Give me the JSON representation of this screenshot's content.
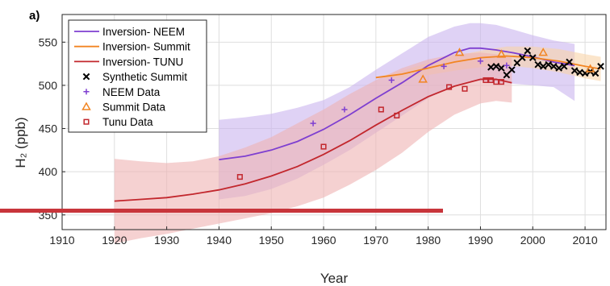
{
  "chart_data": {
    "type": "line",
    "panel_label": "a)",
    "xlabel": "Year",
    "ylabel": "H₂ (ppb)",
    "xlim": [
      1910,
      2014
    ],
    "ylim": [
      333,
      582
    ],
    "x_ticks": [
      "1910",
      "1920",
      "1930",
      "1940",
      "1950",
      "1960",
      "1970",
      "1980",
      "1990",
      "2000",
      "2010"
    ],
    "y_ticks": [
      "350",
      "400",
      "450",
      "500",
      "550"
    ],
    "grid": true,
    "legend_position": "top-left",
    "colors": {
      "neem": "#7e3fd0",
      "neem_band": "#c9b4ee",
      "summit": "#f28522",
      "summit_band": "#f8d3a8",
      "tunu": "#c2272d",
      "tunu_band": "#efb2b2",
      "synthetic": "#000000",
      "overlay_bar": "#c8353b"
    },
    "legend": [
      {
        "label": "Inversion- NEEM",
        "symbol": "line",
        "color": "#7e3fd0"
      },
      {
        "label": "Inversion- Summit",
        "symbol": "line",
        "color": "#f28522"
      },
      {
        "label": "Inversion- TUNU",
        "symbol": "line",
        "color": "#c2272d"
      },
      {
        "label": "Synthetic Summit",
        "symbol": "x",
        "color": "#000000"
      },
      {
        "label": "NEEM Data",
        "symbol": "plus",
        "color": "#7e3fd0"
      },
      {
        "label": "Summit Data",
        "symbol": "triangle",
        "color": "#f28522"
      },
      {
        "label": "Tunu Data",
        "symbol": "square",
        "color": "#c2272d"
      }
    ],
    "series": [
      {
        "name": "Inversion- NEEM",
        "kind": "line",
        "color": "#7e3fd0",
        "band_color": "#c9b4ee",
        "x": [
          1940,
          1945,
          1950,
          1955,
          1960,
          1965,
          1970,
          1975,
          1980,
          1985,
          1988,
          1990,
          1993,
          1996,
          2000,
          2004,
          2008
        ],
        "y": [
          414,
          418,
          425,
          435,
          449,
          466,
          485,
          503,
          523,
          538,
          543,
          543,
          541,
          538,
          533,
          527,
          523
        ],
        "upper": [
          460,
          463,
          467,
          474,
          483,
          498,
          518,
          537,
          556,
          568,
          572,
          572,
          570,
          565,
          558,
          552,
          548
        ],
        "lower": [
          368,
          372,
          380,
          392,
          408,
          425,
          445,
          465,
          485,
          500,
          505,
          505,
          503,
          502,
          500,
          498,
          482
        ]
      },
      {
        "name": "Inversion- Summit",
        "kind": "line",
        "color": "#f28522",
        "band_color": "#f8d3a8",
        "x": [
          1970,
          1975,
          1980,
          1985,
          1990,
          1995,
          2000,
          2005,
          2010,
          2013
        ],
        "y": [
          509,
          513,
          520,
          527,
          532,
          534,
          532,
          528,
          522,
          519
        ],
        "upper": [
          509,
          517,
          526,
          534,
          540,
          545,
          545,
          542,
          536,
          533
        ],
        "lower": [
          509,
          509,
          512,
          517,
          521,
          523,
          520,
          515,
          508,
          505
        ]
      },
      {
        "name": "Inversion- TUNU",
        "kind": "line",
        "color": "#c2272d",
        "band_color": "#efb2b2",
        "x": [
          1920,
          1925,
          1930,
          1935,
          1940,
          1945,
          1950,
          1955,
          1960,
          1965,
          1970,
          1975,
          1980,
          1985,
          1990,
          1993,
          1996
        ],
        "y": [
          366,
          368,
          370,
          374,
          379,
          386,
          395,
          406,
          420,
          436,
          454,
          471,
          487,
          499,
          507,
          507,
          503
        ],
        "upper": [
          415,
          412,
          410,
          412,
          418,
          428,
          440,
          456,
          472,
          490,
          506,
          520,
          530,
          536,
          538,
          536,
          532
        ],
        "lower": [
          317,
          323,
          328,
          334,
          340,
          346,
          352,
          360,
          370,
          385,
          402,
          422,
          446,
          466,
          479,
          482,
          480
        ]
      },
      {
        "name": "Synthetic Summit",
        "kind": "marker",
        "marker": "x",
        "color": "#000000",
        "x": [
          1992,
          1993,
          1994,
          1995,
          1996,
          1997,
          1998,
          1999,
          2000,
          2001,
          2002,
          2003,
          2004,
          2005,
          2006,
          2007,
          2008,
          2009,
          2010,
          2011,
          2012,
          2013
        ],
        "y": [
          521,
          522,
          520,
          512,
          518,
          526,
          532,
          540,
          532,
          524,
          522,
          524,
          522,
          520,
          522,
          527,
          517,
          515,
          514,
          516,
          514,
          522
        ]
      },
      {
        "name": "NEEM Data",
        "kind": "marker",
        "marker": "plus",
        "color": "#7e3fd0",
        "x": [
          1958,
          1964,
          1973,
          1983,
          1990,
          1995
        ],
        "y": [
          456,
          472,
          506,
          522,
          528,
          523
        ]
      },
      {
        "name": "Summit Data",
        "kind": "marker",
        "marker": "triangle",
        "color": "#f28522",
        "x": [
          1979,
          1986,
          1994,
          2002,
          2011
        ],
        "y": [
          507,
          538,
          536,
          538,
          519
        ]
      },
      {
        "name": "Tunu Data",
        "kind": "marker",
        "marker": "square",
        "color": "#c2272d",
        "x": [
          1944,
          1960,
          1971,
          1974,
          1984,
          1987,
          1991,
          1992,
          1993,
          1994
        ],
        "y": [
          394,
          429,
          472,
          465,
          498,
          496,
          506,
          506,
          504,
          504
        ]
      }
    ]
  }
}
